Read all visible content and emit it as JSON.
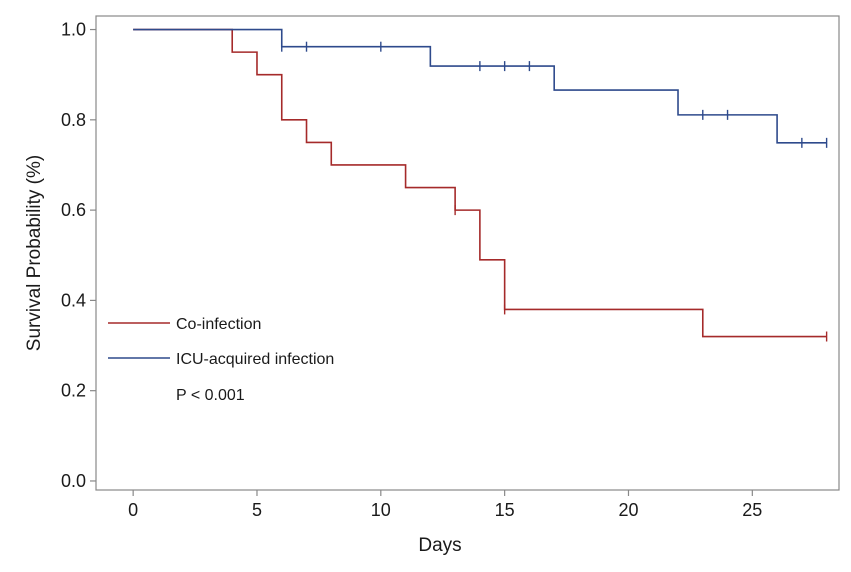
{
  "chart_data": {
    "type": "line",
    "subtype": "kaplan-meier-step",
    "title": "",
    "xlabel": "Days",
    "ylabel": "Survival Probability (%)",
    "xlim": [
      -1.5,
      28.5
    ],
    "ylim": [
      -0.02,
      1.03
    ],
    "x_ticks": [
      0,
      5,
      10,
      15,
      20,
      25
    ],
    "x_tick_labels": [
      "0",
      "5",
      "10",
      "15",
      "20",
      "25"
    ],
    "y_ticks": [
      0.0,
      0.2,
      0.4,
      0.6,
      0.8,
      1.0
    ],
    "y_tick_labels": [
      "0.0",
      "0.2",
      "0.4",
      "0.6",
      "0.8",
      "1.0"
    ],
    "grid": false,
    "legend_position": "lower-left",
    "annotation": "P < 0.001",
    "series": [
      {
        "name": "Co-infection",
        "color": "#a52a2a",
        "steps": [
          {
            "x": 0,
            "y": 1.0
          },
          {
            "x": 4,
            "y": 0.95
          },
          {
            "x": 5,
            "y": 0.9
          },
          {
            "x": 6,
            "y": 0.8
          },
          {
            "x": 7,
            "y": 0.75
          },
          {
            "x": 8,
            "y": 0.7
          },
          {
            "x": 11,
            "y": 0.65
          },
          {
            "x": 13,
            "y": 0.6
          },
          {
            "x": 14,
            "y": 0.49
          },
          {
            "x": 15,
            "y": 0.38
          },
          {
            "x": 23,
            "y": 0.32
          }
        ],
        "end_x": 28,
        "censored": [
          13,
          15,
          28
        ]
      },
      {
        "name": "ICU-acquired infection",
        "color": "#2e4a8c",
        "steps": [
          {
            "x": 0,
            "y": 1.0
          },
          {
            "x": 6,
            "y": 0.962
          },
          {
            "x": 12,
            "y": 0.919
          },
          {
            "x": 17,
            "y": 0.866
          },
          {
            "x": 22,
            "y": 0.811
          },
          {
            "x": 26,
            "y": 0.749
          }
        ],
        "end_x": 28,
        "censored": [
          6,
          7,
          10,
          14,
          15,
          16,
          23,
          24,
          27,
          28
        ]
      }
    ]
  }
}
